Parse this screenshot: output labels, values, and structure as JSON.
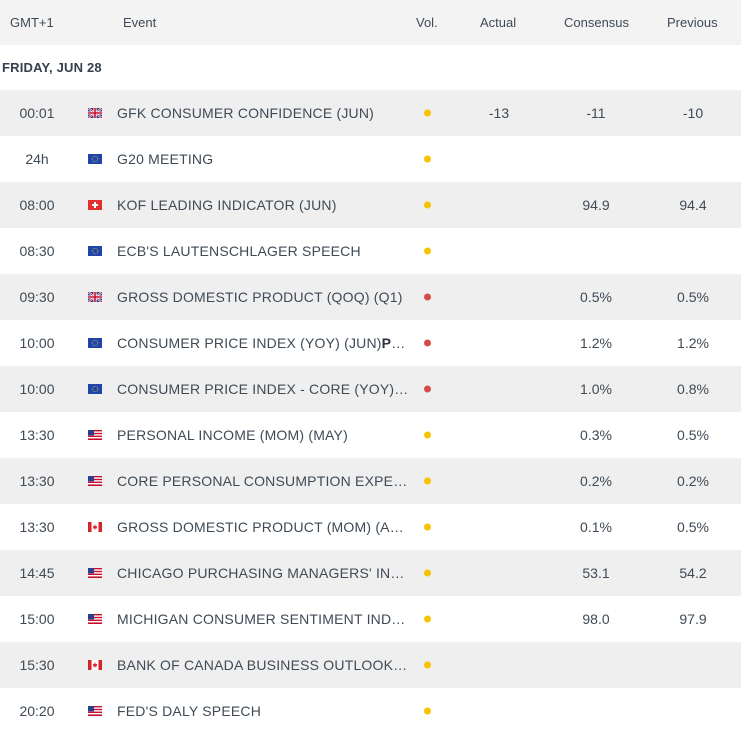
{
  "header": {
    "tz": "GMT+1",
    "event": "Event",
    "vol": "Vol.",
    "actual": "Actual",
    "consensus": "Consensus",
    "previous": "Previous"
  },
  "date_label": "FRIDAY, JUN 28",
  "colors": {
    "high": "#d64a4a",
    "medium": "#f5c400"
  },
  "rows": [
    {
      "time": "00:01",
      "flag": "gb-flag-icon",
      "event": "GFK CONSUMER CONFIDENCE (JUN)",
      "event_bold": "",
      "vol": "medium",
      "actual": "-13",
      "consensus": "-11",
      "previous": "-10"
    },
    {
      "time": "24h",
      "flag": "eu-flag-icon",
      "event": "G20 MEETING",
      "event_bold": "",
      "vol": "medium",
      "actual": "",
      "consensus": "",
      "previous": ""
    },
    {
      "time": "08:00",
      "flag": "ch-flag-icon",
      "event": "KOF LEADING INDICATOR (JUN)",
      "event_bold": "",
      "vol": "medium",
      "actual": "",
      "consensus": "94.9",
      "previous": "94.4"
    },
    {
      "time": "08:30",
      "flag": "eu-flag-icon",
      "event": "ECB'S LAUTENSCHLAGER SPEECH",
      "event_bold": "",
      "vol": "medium",
      "actual": "",
      "consensus": "",
      "previous": ""
    },
    {
      "time": "09:30",
      "flag": "gb-flag-icon",
      "event": "GROSS DOMESTIC PRODUCT (QOQ) (Q1)",
      "event_bold": "",
      "vol": "high",
      "actual": "",
      "consensus": "0.5%",
      "previous": "0.5%"
    },
    {
      "time": "10:00",
      "flag": "eu-flag-icon",
      "event": "CONSUMER PRICE INDEX (YOY) (JUN)",
      "event_bold": "Prel...",
      "vol": "high",
      "actual": "",
      "consensus": "1.2%",
      "previous": "1.2%"
    },
    {
      "time": "10:00",
      "flag": "eu-flag-icon",
      "event": "CONSUMER PRICE INDEX - CORE (YOY) (J...",
      "event_bold": "",
      "vol": "high",
      "actual": "",
      "consensus": "1.0%",
      "previous": "0.8%"
    },
    {
      "time": "13:30",
      "flag": "us-flag-icon",
      "event": "PERSONAL INCOME (MOM) (MAY)",
      "event_bold": "",
      "vol": "medium",
      "actual": "",
      "consensus": "0.3%",
      "previous": "0.5%"
    },
    {
      "time": "13:30",
      "flag": "us-flag-icon",
      "event": "CORE PERSONAL CONSUMPTION EXPEND...",
      "event_bold": "",
      "vol": "medium",
      "actual": "",
      "consensus": "0.2%",
      "previous": "0.2%"
    },
    {
      "time": "13:30",
      "flag": "ca-flag-icon",
      "event": "GROSS DOMESTIC PRODUCT (MOM) (APR)",
      "event_bold": "",
      "vol": "medium",
      "actual": "",
      "consensus": "0.1%",
      "previous": "0.5%"
    },
    {
      "time": "14:45",
      "flag": "us-flag-icon",
      "event": "CHICAGO PURCHASING MANAGERS' INDE...",
      "event_bold": "",
      "vol": "medium",
      "actual": "",
      "consensus": "53.1",
      "previous": "54.2"
    },
    {
      "time": "15:00",
      "flag": "us-flag-icon",
      "event": "MICHIGAN CONSUMER SENTIMENT INDEX...",
      "event_bold": "",
      "vol": "medium",
      "actual": "",
      "consensus": "98.0",
      "previous": "97.9"
    },
    {
      "time": "15:30",
      "flag": "ca-flag-icon",
      "event": "BANK OF CANADA BUSINESS OUTLOOK S...",
      "event_bold": "",
      "vol": "medium",
      "actual": "",
      "consensus": "",
      "previous": ""
    },
    {
      "time": "20:20",
      "flag": "us-flag-icon",
      "event": "FED'S DALY SPEECH",
      "event_bold": "",
      "vol": "medium",
      "actual": "",
      "consensus": "",
      "previous": ""
    }
  ]
}
